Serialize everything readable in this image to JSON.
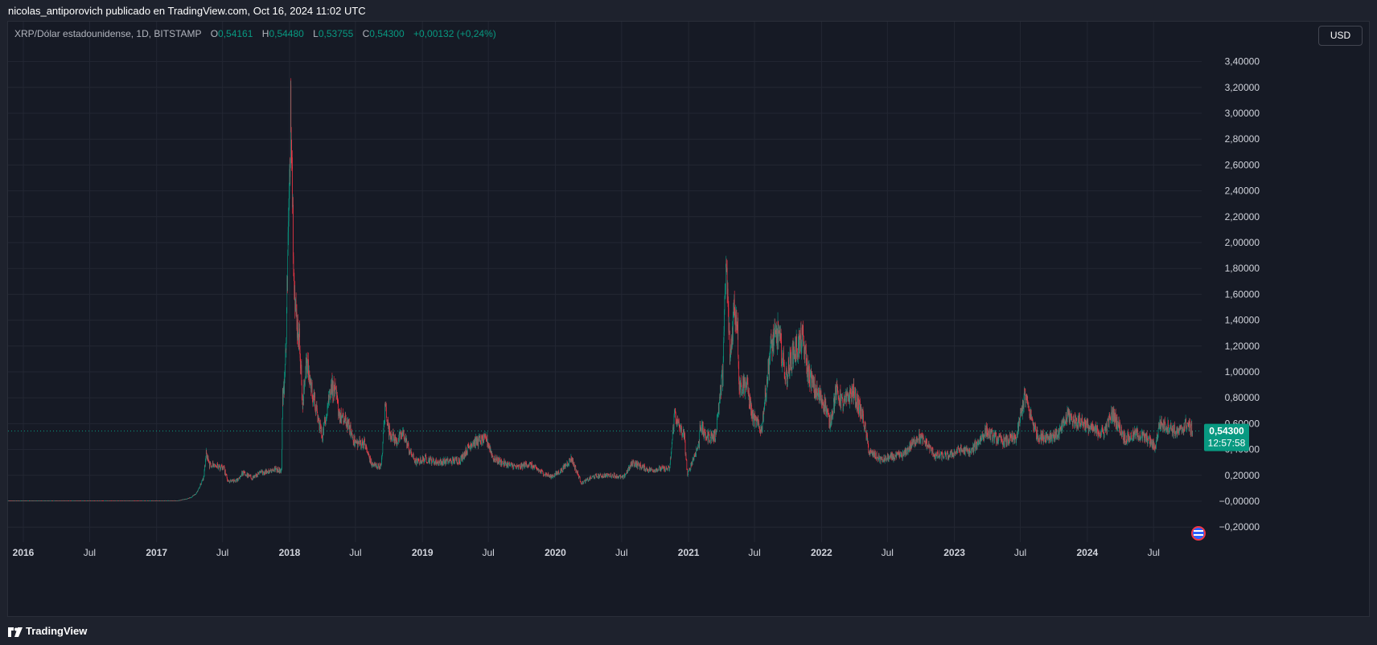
{
  "header": {
    "publisher_line": "nicolas_antiporovich publicado en TradingView.com, Oct 16, 2024 11:02 UTC"
  },
  "legend": {
    "symbol": "XRP/Dólar estadounidense, 1D, BITSTAMP",
    "open_key": "O",
    "open": "0,54161",
    "high_key": "H",
    "high": "0,54480",
    "low_key": "L",
    "low": "0,53755",
    "close_key": "C",
    "close": "0,54300",
    "change": "+0,00132 (+0,24%)"
  },
  "currency_button": "USD",
  "footer": {
    "brand": "TradingView",
    "logo_icon": "tradingview-logo-icon"
  },
  "colors": {
    "up": "#089981",
    "down": "#f23645",
    "background": "#161a25",
    "grid": "#232733",
    "axis_text": "#d1d4dc"
  },
  "chart_data": {
    "type": "candlestick",
    "symbol": "XRP/USD",
    "interval": "1D",
    "exchange": "BITSTAMP",
    "x_ticks": [
      "2016",
      "Jul",
      "2017",
      "Jul",
      "2018",
      "Jul",
      "2019",
      "Jul",
      "2020",
      "Jul",
      "2021",
      "Jul",
      "2022",
      "Jul",
      "2023",
      "Jul",
      "2024",
      "Jul"
    ],
    "x_tick_dates": [
      "2016-01-01",
      "2016-07-01",
      "2017-01-01",
      "2017-07-01",
      "2018-01-01",
      "2018-07-01",
      "2019-01-01",
      "2019-07-01",
      "2020-01-01",
      "2020-07-01",
      "2021-01-01",
      "2021-07-01",
      "2022-01-01",
      "2022-07-01",
      "2023-01-01",
      "2023-07-01",
      "2024-01-01",
      "2024-07-01"
    ],
    "x_range": [
      "2015-11-20",
      "2024-11-10"
    ],
    "y_ticks": [
      "3,40000",
      "3,20000",
      "3,00000",
      "2,80000",
      "2,60000",
      "2,40000",
      "2,20000",
      "2,00000",
      "1,80000",
      "1,60000",
      "1,40000",
      "1,20000",
      "1,00000",
      "0,80000",
      "0,60000",
      "0,40000",
      "0,20000",
      "−0,00000",
      "−0,20000"
    ],
    "y_tick_values": [
      3.4,
      3.2,
      3.0,
      2.8,
      2.6,
      2.4,
      2.2,
      2.0,
      1.8,
      1.6,
      1.4,
      1.2,
      1.0,
      0.8,
      0.6,
      0.4,
      0.2,
      0.0,
      -0.2
    ],
    "ylim": [
      -0.25,
      3.8
    ],
    "last_price": 0.543,
    "last_price_label": "0,54300",
    "countdown_label": "12:57:58",
    "grid": true,
    "anchor_points": [
      [
        "2015-11-20",
        0.005
      ],
      [
        "2017-03-01",
        0.006
      ],
      [
        "2017-03-25",
        0.02
      ],
      [
        "2017-04-05",
        0.03
      ],
      [
        "2017-04-20",
        0.06
      ],
      [
        "2017-05-10",
        0.18
      ],
      [
        "2017-05-17",
        0.37
      ],
      [
        "2017-05-25",
        0.28
      ],
      [
        "2017-06-10",
        0.28
      ],
      [
        "2017-07-05",
        0.25
      ],
      [
        "2017-07-16",
        0.15
      ],
      [
        "2017-08-10",
        0.16
      ],
      [
        "2017-08-25",
        0.22
      ],
      [
        "2017-09-20",
        0.18
      ],
      [
        "2017-10-15",
        0.22
      ],
      [
        "2017-11-25",
        0.25
      ],
      [
        "2017-12-10",
        0.24
      ],
      [
        "2017-12-13",
        0.8
      ],
      [
        "2017-12-20",
        1.0
      ],
      [
        "2017-12-28",
        2.0
      ],
      [
        "2018-01-02",
        2.5
      ],
      [
        "2018-01-04",
        3.2
      ],
      [
        "2018-01-07",
        2.8
      ],
      [
        "2018-01-10",
        2.2
      ],
      [
        "2018-01-16",
        1.5
      ],
      [
        "2018-01-30",
        1.2
      ],
      [
        "2018-02-06",
        0.7
      ],
      [
        "2018-02-15",
        1.1
      ],
      [
        "2018-02-25",
        0.95
      ],
      [
        "2018-03-15",
        0.7
      ],
      [
        "2018-04-01",
        0.5
      ],
      [
        "2018-04-25",
        0.9
      ],
      [
        "2018-05-05",
        0.85
      ],
      [
        "2018-05-20",
        0.65
      ],
      [
        "2018-06-10",
        0.6
      ],
      [
        "2018-06-30",
        0.45
      ],
      [
        "2018-07-25",
        0.45
      ],
      [
        "2018-08-15",
        0.28
      ],
      [
        "2018-09-10",
        0.27
      ],
      [
        "2018-09-21",
        0.75
      ],
      [
        "2018-09-30",
        0.55
      ],
      [
        "2018-10-20",
        0.46
      ],
      [
        "2018-11-10",
        0.52
      ],
      [
        "2018-11-25",
        0.4
      ],
      [
        "2018-12-15",
        0.3
      ],
      [
        "2019-01-10",
        0.33
      ],
      [
        "2019-02-10",
        0.3
      ],
      [
        "2019-03-20",
        0.31
      ],
      [
        "2019-04-15",
        0.32
      ],
      [
        "2019-05-16",
        0.45
      ],
      [
        "2019-06-26",
        0.48
      ],
      [
        "2019-07-15",
        0.33
      ],
      [
        "2019-08-15",
        0.29
      ],
      [
        "2019-09-20",
        0.26
      ],
      [
        "2019-10-20",
        0.29
      ],
      [
        "2019-11-20",
        0.23
      ],
      [
        "2019-12-20",
        0.19
      ],
      [
        "2020-01-15",
        0.23
      ],
      [
        "2020-02-14",
        0.33
      ],
      [
        "2020-03-13",
        0.14
      ],
      [
        "2020-04-15",
        0.19
      ],
      [
        "2020-05-15",
        0.2
      ],
      [
        "2020-06-10",
        0.2
      ],
      [
        "2020-07-05",
        0.18
      ],
      [
        "2020-08-01",
        0.3
      ],
      [
        "2020-08-15",
        0.28
      ],
      [
        "2020-09-15",
        0.24
      ],
      [
        "2020-10-15",
        0.25
      ],
      [
        "2020-11-10",
        0.25
      ],
      [
        "2020-11-24",
        0.7
      ],
      [
        "2020-12-01",
        0.6
      ],
      [
        "2020-12-20",
        0.5
      ],
      [
        "2020-12-29",
        0.2
      ],
      [
        "2021-01-10",
        0.3
      ],
      [
        "2021-01-30",
        0.45
      ],
      [
        "2021-02-01",
        0.6
      ],
      [
        "2021-02-15",
        0.5
      ],
      [
        "2021-03-15",
        0.5
      ],
      [
        "2021-04-05",
        1.0
      ],
      [
        "2021-04-14",
        1.85
      ],
      [
        "2021-04-25",
        1.1
      ],
      [
        "2021-05-06",
        1.5
      ],
      [
        "2021-05-15",
        1.4
      ],
      [
        "2021-05-20",
        0.9
      ],
      [
        "2021-06-10",
        0.9
      ],
      [
        "2021-06-25",
        0.65
      ],
      [
        "2021-07-20",
        0.55
      ],
      [
        "2021-08-15",
        1.2
      ],
      [
        "2021-09-05",
        1.3
      ],
      [
        "2021-09-25",
        0.95
      ],
      [
        "2021-10-15",
        1.15
      ],
      [
        "2021-11-10",
        1.25
      ],
      [
        "2021-11-25",
        1.0
      ],
      [
        "2021-12-15",
        0.85
      ],
      [
        "2022-01-10",
        0.75
      ],
      [
        "2022-01-24",
        0.6
      ],
      [
        "2022-02-10",
        0.85
      ],
      [
        "2022-03-01",
        0.75
      ],
      [
        "2022-03-28",
        0.85
      ],
      [
        "2022-04-25",
        0.65
      ],
      [
        "2022-05-12",
        0.38
      ],
      [
        "2022-06-15",
        0.32
      ],
      [
        "2022-07-15",
        0.34
      ],
      [
        "2022-08-15",
        0.36
      ],
      [
        "2022-09-23",
        0.5
      ],
      [
        "2022-10-15",
        0.45
      ],
      [
        "2022-11-10",
        0.35
      ],
      [
        "2022-12-15",
        0.35
      ],
      [
        "2023-01-15",
        0.4
      ],
      [
        "2023-02-15",
        0.38
      ],
      [
        "2023-03-29",
        0.54
      ],
      [
        "2023-04-15",
        0.5
      ],
      [
        "2023-05-15",
        0.46
      ],
      [
        "2023-06-20",
        0.49
      ],
      [
        "2023-07-13",
        0.82
      ],
      [
        "2023-07-25",
        0.7
      ],
      [
        "2023-08-17",
        0.5
      ],
      [
        "2023-09-15",
        0.5
      ],
      [
        "2023-10-15",
        0.52
      ],
      [
        "2023-11-10",
        0.67
      ],
      [
        "2023-11-25",
        0.62
      ],
      [
        "2023-12-15",
        0.62
      ],
      [
        "2024-01-15",
        0.55
      ],
      [
        "2024-02-15",
        0.53
      ],
      [
        "2024-03-11",
        0.68
      ],
      [
        "2024-04-13",
        0.48
      ],
      [
        "2024-05-15",
        0.52
      ],
      [
        "2024-06-15",
        0.48
      ],
      [
        "2024-07-05",
        0.41
      ],
      [
        "2024-07-17",
        0.6
      ],
      [
        "2024-08-10",
        0.58
      ],
      [
        "2024-09-05",
        0.53
      ],
      [
        "2024-10-01",
        0.6
      ],
      [
        "2024-10-16",
        0.543
      ]
    ]
  }
}
